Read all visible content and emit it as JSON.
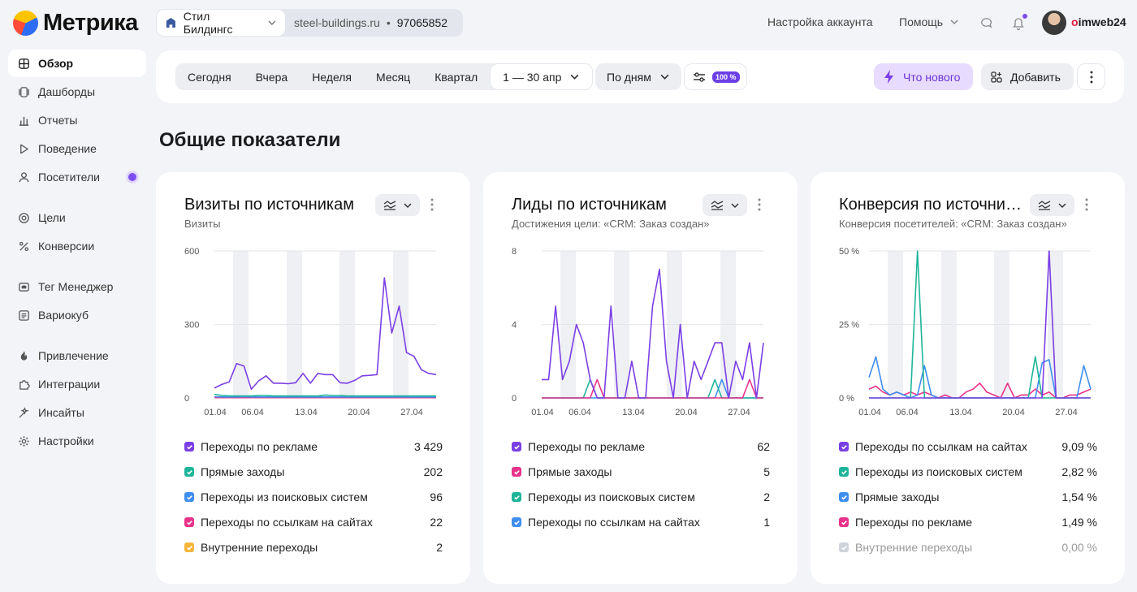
{
  "app": {
    "logo_text": "Метрика"
  },
  "counter": {
    "name": "Стил Билдингс",
    "domain": "steel-buildings.ru",
    "sep": "•",
    "id": "97065852"
  },
  "header": {
    "account_settings": "Настройка аккаунта",
    "help": "Помощь",
    "user_prefix": "o",
    "user_rest": "imweb24"
  },
  "sidebar": {
    "items": [
      {
        "label": "Обзор",
        "icon": "grid-icon",
        "active": true
      },
      {
        "label": "Дашборды",
        "icon": "dashboard-icon"
      },
      {
        "label": "Отчеты",
        "icon": "bar-chart-icon"
      },
      {
        "label": "Поведение",
        "icon": "play-icon"
      },
      {
        "label": "Посетители",
        "icon": "user-icon",
        "badge": true
      },
      {
        "label": "Цели",
        "icon": "target-icon"
      },
      {
        "label": "Конверсии",
        "icon": "percent-icon"
      },
      {
        "label": "Тег Менеджер",
        "icon": "tag-icon"
      },
      {
        "label": "Вариокуб",
        "icon": "cube-icon"
      },
      {
        "label": "Привлечение",
        "icon": "flame-icon"
      },
      {
        "label": "Интеграции",
        "icon": "puzzle-icon"
      },
      {
        "label": "Инсайты",
        "icon": "sparkle-icon"
      },
      {
        "label": "Настройки",
        "icon": "gear-icon"
      }
    ]
  },
  "toolbar": {
    "periods": [
      "Сегодня",
      "Вчера",
      "Неделя",
      "Месяц",
      "Квартал"
    ],
    "date_range": "1 — 30 апр",
    "grouping": "По дням",
    "sampling": "100 %",
    "whats_new": "Что нового",
    "add": "Добавить"
  },
  "page": {
    "title": "Общие показатели"
  },
  "colors": {
    "purple": "#7b3fe4",
    "teal": "#1fb59a",
    "blue": "#3f8ef0",
    "pink": "#e8338a",
    "orange": "#f5b53d",
    "gray": "#cfd3da"
  },
  "cards": [
    {
      "title": "Визиты по источникам",
      "subtitle": "Визиты",
      "legend": [
        {
          "label": "Переходы по рекламе",
          "value": "3 429",
          "color": "#7b3fe4"
        },
        {
          "label": "Прямые заходы",
          "value": "202",
          "color": "#1fb59a"
        },
        {
          "label": "Переходы из поисковых систем",
          "value": "96",
          "color": "#3f8ef0"
        },
        {
          "label": "Переходы по ссылкам на сайтах",
          "value": "22",
          "color": "#e8338a"
        },
        {
          "label": "Внутренние переходы",
          "value": "2",
          "color": "#f5b53d"
        }
      ]
    },
    {
      "title": "Лиды по источникам",
      "subtitle": "Достижения цели: «CRM: Заказ создан»",
      "legend": [
        {
          "label": "Переходы по рекламе",
          "value": "62",
          "color": "#7b3fe4"
        },
        {
          "label": "Прямые заходы",
          "value": "5",
          "color": "#e8338a"
        },
        {
          "label": "Переходы из поисковых систем",
          "value": "2",
          "color": "#1fb59a"
        },
        {
          "label": "Переходы по ссылкам на сайтах",
          "value": "1",
          "color": "#3f8ef0"
        }
      ]
    },
    {
      "title": "Конверсия по источни…",
      "subtitle": "Конверсия посетителей: «CRM: Заказ создан»",
      "legend": [
        {
          "label": "Переходы по ссылкам на сайтах",
          "value": "9,09 %",
          "color": "#7b3fe4"
        },
        {
          "label": "Переходы из поисковых систем",
          "value": "2,82 %",
          "color": "#1fb59a"
        },
        {
          "label": "Прямые заходы",
          "value": "1,54 %",
          "color": "#3f8ef0"
        },
        {
          "label": "Переходы по рекламе",
          "value": "1,49 %",
          "color": "#e8338a"
        },
        {
          "label": "Внутренние переходы",
          "value": "0,00 %",
          "color": "#cfd3da",
          "dim": true
        }
      ]
    }
  ],
  "chart_data": [
    {
      "type": "line",
      "x_ticks": [
        "01.04",
        "06.04",
        "13.04",
        "20.04",
        "27.04"
      ],
      "y_ticks": [
        "0",
        "300",
        "600"
      ],
      "ylim": [
        0,
        600
      ],
      "series": [
        {
          "name": "Переходы по рекламе",
          "color": "#7b3fe4",
          "values": [
            40,
            55,
            65,
            140,
            130,
            35,
            70,
            90,
            60,
            60,
            58,
            62,
            100,
            60,
            100,
            95,
            95,
            62,
            60,
            72,
            90,
            92,
            95,
            490,
            265,
            375,
            185,
            170,
            115,
            100,
            95
          ]
        },
        {
          "name": "Прямые заходы",
          "color": "#1fb59a",
          "values": [
            15,
            10,
            8,
            8,
            8,
            8,
            10,
            10,
            8,
            8,
            8,
            8,
            8,
            8,
            8,
            12,
            10,
            10,
            8,
            8,
            8,
            8,
            8,
            8,
            8,
            8,
            8,
            8,
            8,
            8,
            8
          ]
        },
        {
          "name": "Переходы из поисковых систем",
          "color": "#3f8ef0",
          "values": [
            5,
            4,
            4,
            4,
            5,
            4,
            4,
            4,
            4,
            4,
            4,
            4,
            4,
            4,
            4,
            4,
            4,
            4,
            4,
            4,
            4,
            4,
            4,
            4,
            4,
            4,
            4,
            4,
            4,
            4,
            4
          ]
        },
        {
          "name": "Переходы по ссылкам на сайтах",
          "color": "#e8338a",
          "values": [
            1,
            1,
            1,
            1,
            1,
            1,
            1,
            1,
            1,
            1,
            1,
            1,
            1,
            1,
            1,
            1,
            1,
            1,
            1,
            1,
            1,
            1,
            1,
            1,
            1,
            1,
            1,
            1,
            1,
            1,
            1
          ]
        }
      ]
    },
    {
      "type": "line",
      "x_ticks": [
        "01.04",
        "06.04",
        "13.04",
        "20.04",
        "27.04"
      ],
      "y_ticks": [
        "0",
        "4",
        "8"
      ],
      "ylim": [
        0,
        8
      ],
      "series": [
        {
          "name": "Переходы по рекламе",
          "color": "#7b3fe4",
          "values": [
            1,
            1,
            5,
            1,
            2,
            4,
            3,
            1,
            0,
            0,
            5,
            0,
            0,
            2,
            0,
            0,
            5,
            7,
            2,
            0,
            4,
            0,
            2,
            1,
            2,
            3,
            3,
            0,
            2,
            1,
            3,
            0,
            3
          ]
        },
        {
          "name": "Прямые заходы",
          "color": "#e8338a",
          "values": [
            0,
            0,
            0,
            0,
            0,
            0,
            0,
            0,
            1,
            0,
            0,
            0,
            0,
            0,
            0,
            0,
            0,
            0,
            0,
            0,
            0,
            0,
            0,
            0,
            0,
            0,
            0,
            0,
            0,
            0,
            1,
            0,
            0
          ]
        },
        {
          "name": "Переходы из поисковых систем",
          "color": "#1fb59a",
          "values": [
            0,
            0,
            0,
            0,
            0,
            0,
            0,
            1,
            0,
            0,
            0,
            0,
            0,
            0,
            0,
            0,
            0,
            0,
            0,
            0,
            0,
            0,
            0,
            0,
            0,
            1,
            0,
            0,
            0,
            0,
            0,
            0,
            0
          ]
        },
        {
          "name": "Переходы по ссылкам на сайтах",
          "color": "#3f8ef0",
          "values": [
            0,
            0,
            0,
            0,
            0,
            0,
            0,
            0,
            0,
            0,
            0,
            0,
            0,
            0,
            0,
            0,
            0,
            0,
            0,
            0,
            0,
            0,
            0,
            0,
            0,
            0,
            1,
            0,
            0,
            0,
            0,
            0,
            0
          ]
        }
      ]
    },
    {
      "type": "line",
      "x_ticks": [
        "01.04",
        "06.04",
        "13.04",
        "20.04",
        "27.04"
      ],
      "y_ticks": [
        "0 %",
        "25 %",
        "50 %"
      ],
      "ylim": [
        0,
        50
      ],
      "series": [
        {
          "name": "Переходы по ссылкам на сайтах",
          "color": "#7b3fe4",
          "values": [
            0,
            0,
            0,
            0,
            0,
            0,
            0,
            0,
            0,
            0,
            0,
            0,
            0,
            0,
            0,
            0,
            0,
            0,
            0,
            0,
            0,
            0,
            0,
            0,
            0,
            0,
            50,
            0,
            0,
            0,
            0,
            0,
            0
          ]
        },
        {
          "name": "Переходы из поисковых систем",
          "color": "#1fb59a",
          "values": [
            0,
            0,
            0,
            0,
            0,
            0,
            0,
            50,
            0,
            0,
            0,
            0,
            0,
            0,
            0,
            0,
            0,
            0,
            0,
            0,
            0,
            0,
            0,
            0,
            14,
            0,
            0,
            0,
            0,
            0,
            0,
            0,
            0
          ]
        },
        {
          "name": "Прямые заходы",
          "color": "#3f8ef0",
          "values": [
            7,
            14,
            3,
            1,
            2,
            1,
            0,
            1,
            11,
            1,
            0,
            0,
            0,
            0,
            0,
            0,
            0,
            0,
            0,
            0,
            0,
            0,
            0,
            0,
            0,
            12,
            13,
            0,
            0,
            0,
            0,
            11,
            3
          ]
        },
        {
          "name": "Переходы по рекламе",
          "color": "#e8338a",
          "values": [
            3,
            4,
            2,
            1,
            2,
            1,
            2,
            1,
            2,
            1,
            0,
            1,
            0,
            0,
            2,
            3,
            5,
            2,
            1,
            0,
            5,
            0,
            1,
            1,
            3,
            1,
            2,
            0,
            0,
            1,
            1,
            2,
            3
          ]
        }
      ]
    }
  ]
}
